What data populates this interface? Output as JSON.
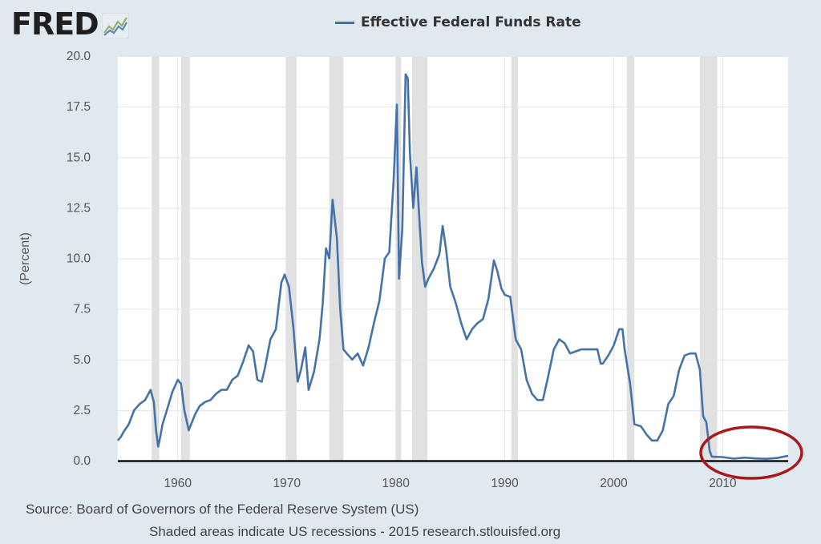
{
  "brand": {
    "name": "FRED",
    "icon": "trend-chart-icon"
  },
  "legend": {
    "label": "Effective Federal Funds Rate",
    "color": "#4572a7"
  },
  "chart_data": {
    "type": "line",
    "title": "Effective Federal Funds Rate",
    "xlabel": "",
    "ylabel": "(Percent)",
    "xlim": [
      1954.5,
      2016.0
    ],
    "ylim": [
      0,
      20
    ],
    "xticks": [
      1960,
      1970,
      1980,
      1990,
      2000,
      2010
    ],
    "yticks": [
      0,
      2.5,
      5,
      7.5,
      10,
      12.5,
      15,
      17.5,
      20
    ],
    "ytick_labels": [
      "0.0",
      "2.5",
      "5.0",
      "7.5",
      "10.0",
      "12.5",
      "15.0",
      "17.5",
      "20.0"
    ],
    "grid": true,
    "recessions": [
      [
        1957.6,
        1958.3
      ],
      [
        1960.3,
        1961.1
      ],
      [
        1969.9,
        1970.9
      ],
      [
        1973.9,
        1975.2
      ],
      [
        1980.0,
        1980.5
      ],
      [
        1981.5,
        1982.9
      ],
      [
        1990.6,
        1991.2
      ],
      [
        2001.2,
        2001.9
      ],
      [
        2007.9,
        2009.5
      ]
    ],
    "series": [
      {
        "name": "Effective Federal Funds Rate",
        "color": "#4572a7",
        "x": [
          1954.5,
          1954.8,
          1955.0,
          1955.5,
          1956.0,
          1956.5,
          1957.0,
          1957.5,
          1957.8,
          1958.0,
          1958.2,
          1958.4,
          1958.6,
          1959.0,
          1959.5,
          1960.0,
          1960.3,
          1960.6,
          1961.0,
          1961.3,
          1961.6,
          1962.0,
          1962.5,
          1963.0,
          1963.5,
          1964.0,
          1964.5,
          1965.0,
          1965.5,
          1966.0,
          1966.5,
          1966.9,
          1967.3,
          1967.7,
          1968.0,
          1968.5,
          1969.0,
          1969.5,
          1969.8,
          1970.2,
          1970.6,
          1971.0,
          1971.3,
          1971.7,
          1972.0,
          1972.5,
          1973.0,
          1973.3,
          1973.6,
          1973.9,
          1974.2,
          1974.6,
          1974.9,
          1975.2,
          1975.5,
          1976.0,
          1976.5,
          1977.0,
          1977.5,
          1978.0,
          1978.5,
          1979.0,
          1979.4,
          1979.8,
          1980.1,
          1980.3,
          1980.6,
          1980.9,
          1981.1,
          1981.3,
          1981.6,
          1981.9,
          1982.1,
          1982.4,
          1982.7,
          1983.0,
          1983.5,
          1984.0,
          1984.3,
          1984.6,
          1985.0,
          1985.5,
          1986.0,
          1986.5,
          1987.0,
          1987.5,
          1988.0,
          1988.5,
          1989.0,
          1989.3,
          1989.7,
          1990.0,
          1990.5,
          1991.0,
          1991.5,
          1992.0,
          1992.5,
          1993.0,
          1993.5,
          1994.0,
          1994.5,
          1995.0,
          1995.5,
          1996.0,
          1996.5,
          1997.0,
          1997.5,
          1998.0,
          1998.5,
          1998.8,
          1999.0,
          1999.5,
          2000.0,
          2000.5,
          2000.8,
          2001.0,
          2001.5,
          2001.9,
          2002.5,
          2003.0,
          2003.5,
          2004.0,
          2004.5,
          2005.0,
          2005.5,
          2006.0,
          2006.5,
          2007.0,
          2007.5,
          2007.9,
          2008.2,
          2008.5,
          2008.8,
          2009.0,
          2010.0,
          2011.0,
          2012.0,
          2013.0,
          2014.0,
          2015.0,
          2016.0
        ],
        "values": [
          1.0,
          1.2,
          1.4,
          1.8,
          2.5,
          2.8,
          3.0,
          3.5,
          2.9,
          1.5,
          0.7,
          1.2,
          1.8,
          2.5,
          3.4,
          4.0,
          3.8,
          2.5,
          1.5,
          1.9,
          2.3,
          2.7,
          2.9,
          3.0,
          3.3,
          3.5,
          3.5,
          4.0,
          4.2,
          4.9,
          5.7,
          5.4,
          4.0,
          3.9,
          4.6,
          6.0,
          6.5,
          8.8,
          9.2,
          8.6,
          6.6,
          3.9,
          4.5,
          5.6,
          3.5,
          4.4,
          6.0,
          7.8,
          10.5,
          10.0,
          12.9,
          11.0,
          7.5,
          5.5,
          5.3,
          5.0,
          5.3,
          4.7,
          5.6,
          6.8,
          7.9,
          10.0,
          10.3,
          13.8,
          17.6,
          9.0,
          11.5,
          19.1,
          18.9,
          15.2,
          12.5,
          14.5,
          12.5,
          9.8,
          8.6,
          9.0,
          9.5,
          10.2,
          11.6,
          10.5,
          8.6,
          7.8,
          6.8,
          6.0,
          6.5,
          6.8,
          7.0,
          8.0,
          9.9,
          9.4,
          8.5,
          8.2,
          8.1,
          6.0,
          5.5,
          4.0,
          3.3,
          3.0,
          3.0,
          4.2,
          5.5,
          6.0,
          5.8,
          5.3,
          5.4,
          5.5,
          5.5,
          5.5,
          5.5,
          4.8,
          4.8,
          5.2,
          5.7,
          6.5,
          6.5,
          5.5,
          3.8,
          1.8,
          1.7,
          1.3,
          1.0,
          1.0,
          1.5,
          2.8,
          3.2,
          4.5,
          5.2,
          5.3,
          5.3,
          4.5,
          2.2,
          1.9,
          0.5,
          0.2,
          0.18,
          0.1,
          0.15,
          0.11,
          0.09,
          0.13,
          0.24
        ]
      }
    ]
  },
  "footer": {
    "source": "Source: Board of Governors of the Federal Reserve System (US)",
    "note": "Shaded areas indicate US recessions - 2015 research.stlouisfed.org"
  },
  "annotation": {
    "type": "circle",
    "color": "#a8191c",
    "label": ""
  }
}
